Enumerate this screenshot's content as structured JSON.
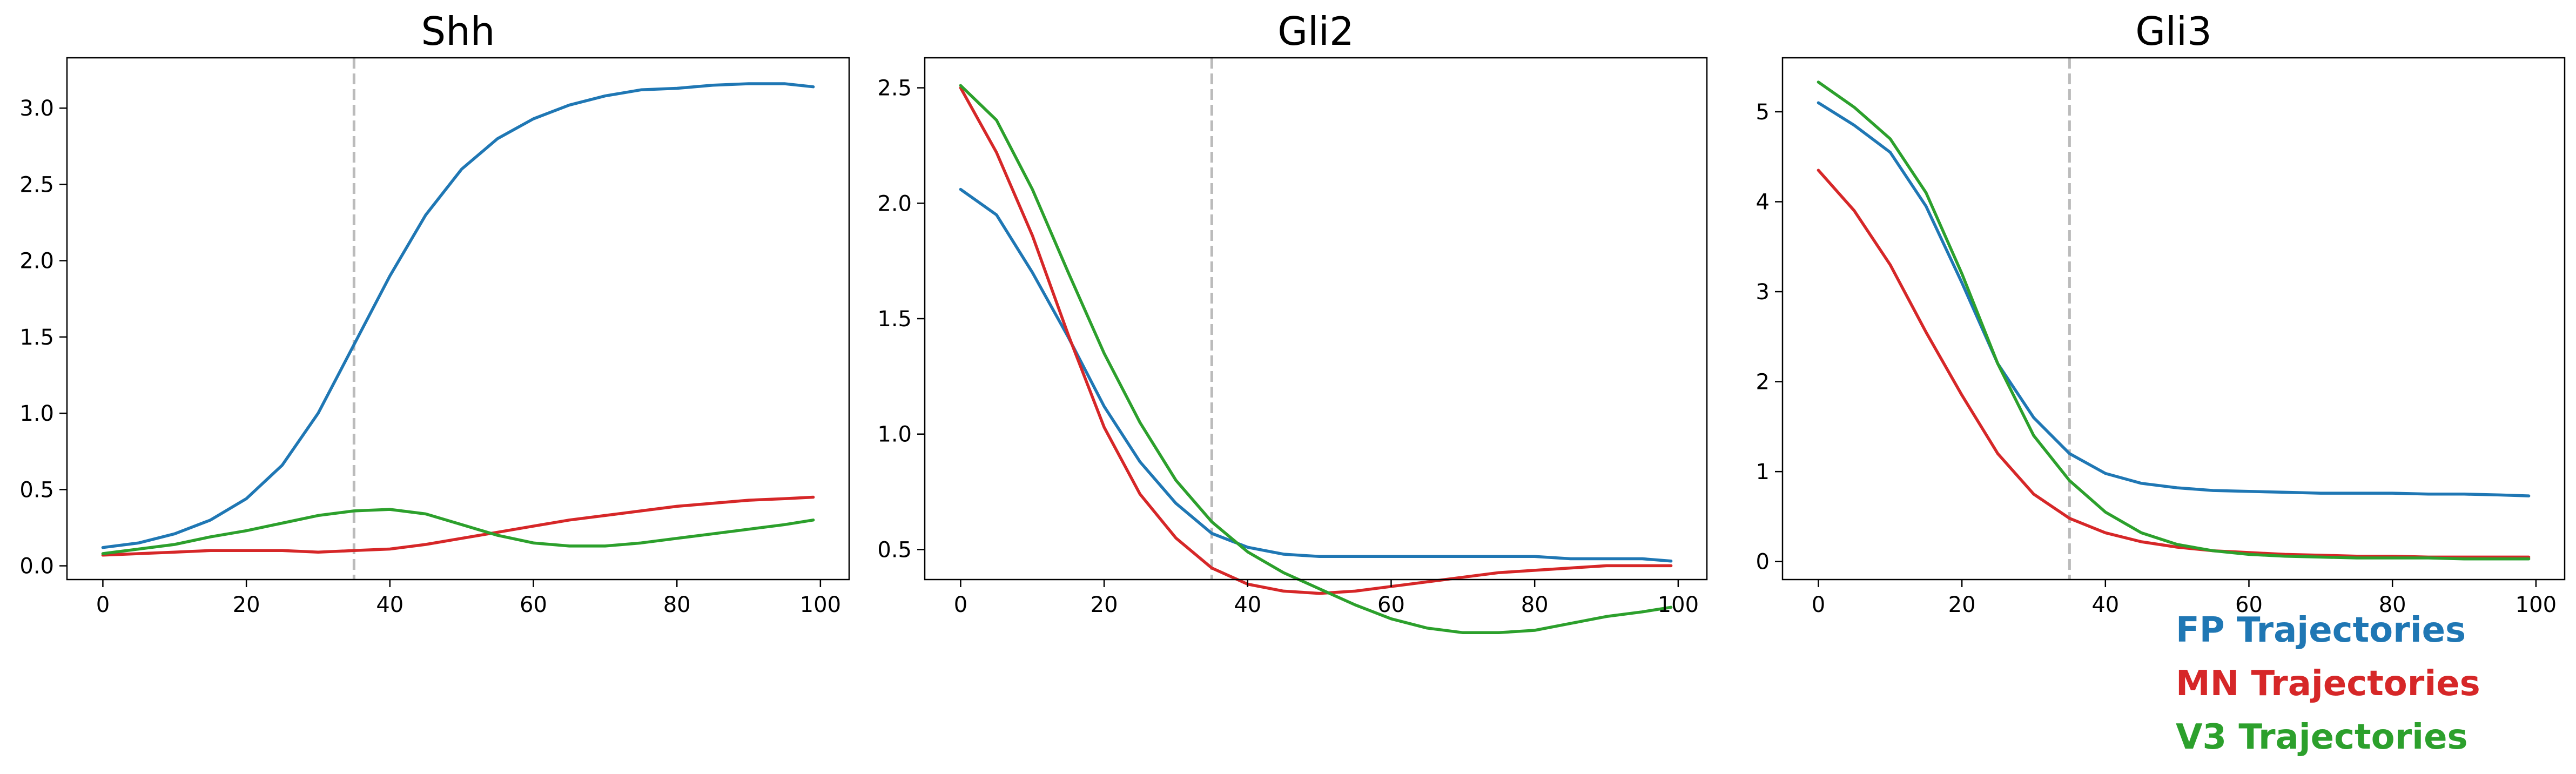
{
  "chart_data": [
    {
      "type": "line",
      "title": "Shh",
      "xlim": [
        -5,
        104
      ],
      "ylim": [
        -0.09,
        3.33
      ],
      "xticks": [
        0,
        20,
        40,
        60,
        80,
        100
      ],
      "yticks": [
        0.0,
        0.5,
        1.0,
        1.5,
        2.0,
        2.5,
        3.0
      ],
      "ytick_labels": [
        "0.0",
        "0.5",
        "1.0",
        "1.5",
        "2.0",
        "2.5",
        "3.0"
      ],
      "vline_x": 35,
      "grid": false,
      "x": [
        0,
        5,
        10,
        15,
        20,
        25,
        30,
        35,
        40,
        45,
        50,
        55,
        60,
        65,
        70,
        75,
        80,
        85,
        90,
        95,
        99
      ],
      "series": [
        {
          "name": "FP Trajectories",
          "color": "#1f77b4",
          "values": [
            0.12,
            0.15,
            0.21,
            0.3,
            0.44,
            0.66,
            1.0,
            1.45,
            1.9,
            2.3,
            2.6,
            2.8,
            2.93,
            3.02,
            3.08,
            3.12,
            3.13,
            3.15,
            3.16,
            3.16,
            3.14
          ]
        },
        {
          "name": "MN Trajectories",
          "color": "#d62728",
          "values": [
            0.07,
            0.08,
            0.09,
            0.1,
            0.1,
            0.1,
            0.09,
            0.1,
            0.11,
            0.14,
            0.18,
            0.22,
            0.26,
            0.3,
            0.33,
            0.36,
            0.39,
            0.41,
            0.43,
            0.44,
            0.45
          ]
        },
        {
          "name": "V3 Trajectories",
          "color": "#2ca02c",
          "values": [
            0.08,
            0.11,
            0.14,
            0.19,
            0.23,
            0.28,
            0.33,
            0.36,
            0.37,
            0.34,
            0.27,
            0.2,
            0.15,
            0.13,
            0.13,
            0.15,
            0.18,
            0.21,
            0.24,
            0.27,
            0.3
          ]
        }
      ]
    },
    {
      "type": "line",
      "title": "Gli2",
      "xlim": [
        -5,
        104
      ],
      "ylim": [
        0.37,
        2.63
      ],
      "xticks": [
        0,
        20,
        40,
        60,
        80,
        100
      ],
      "yticks": [
        0.5,
        1.0,
        1.5,
        2.0,
        2.5
      ],
      "ytick_labels": [
        "0.5",
        "1.0",
        "1.5",
        "2.0",
        "2.5"
      ],
      "vline_x": 35,
      "grid": false,
      "x": [
        0,
        5,
        10,
        15,
        20,
        25,
        30,
        35,
        40,
        45,
        50,
        55,
        60,
        65,
        70,
        75,
        80,
        85,
        90,
        95,
        99
      ],
      "series": [
        {
          "name": "FP Trajectories",
          "color": "#1f77b4",
          "values": [
            2.06,
            1.95,
            1.7,
            1.42,
            1.12,
            0.88,
            0.7,
            0.57,
            0.51,
            0.48,
            0.47,
            0.47,
            0.47,
            0.47,
            0.47,
            0.47,
            0.47,
            0.46,
            0.46,
            0.46,
            0.45
          ]
        },
        {
          "name": "MN Trajectories",
          "color": "#d62728",
          "values": [
            2.5,
            2.22,
            1.86,
            1.43,
            1.03,
            0.74,
            0.55,
            0.42,
            0.35,
            0.32,
            0.31,
            0.32,
            0.34,
            0.36,
            0.38,
            0.4,
            0.41,
            0.42,
            0.43,
            0.43,
            0.43
          ]
        },
        {
          "name": "V3 Trajectories",
          "color": "#2ca02c",
          "values": [
            2.51,
            2.36,
            2.06,
            1.7,
            1.35,
            1.05,
            0.8,
            0.62,
            0.49,
            0.4,
            0.33,
            0.26,
            0.2,
            0.16,
            0.14,
            0.14,
            0.15,
            0.18,
            0.21,
            0.23,
            0.25
          ]
        }
      ]
    },
    {
      "type": "line",
      "title": "Gli3",
      "xlim": [
        -5,
        104
      ],
      "ylim": [
        -0.2,
        5.6
      ],
      "xticks": [
        0,
        20,
        40,
        60,
        80,
        100
      ],
      "yticks": [
        0,
        1,
        2,
        3,
        4,
        5
      ],
      "ytick_labels": [
        "0",
        "1",
        "2",
        "3",
        "4",
        "5"
      ],
      "vline_x": 35,
      "grid": false,
      "x": [
        0,
        5,
        10,
        15,
        20,
        25,
        30,
        35,
        40,
        45,
        50,
        55,
        60,
        65,
        70,
        75,
        80,
        85,
        90,
        95,
        99
      ],
      "series": [
        {
          "name": "FP Trajectories",
          "color": "#1f77b4",
          "values": [
            5.1,
            4.85,
            4.55,
            3.95,
            3.1,
            2.2,
            1.6,
            1.2,
            0.98,
            0.87,
            0.82,
            0.79,
            0.78,
            0.77,
            0.76,
            0.76,
            0.76,
            0.75,
            0.75,
            0.74,
            0.73
          ]
        },
        {
          "name": "MN Trajectories",
          "color": "#d62728",
          "values": [
            4.35,
            3.9,
            3.3,
            2.55,
            1.85,
            1.2,
            0.75,
            0.48,
            0.32,
            0.22,
            0.16,
            0.12,
            0.1,
            0.08,
            0.07,
            0.06,
            0.06,
            0.05,
            0.05,
            0.05,
            0.05
          ]
        },
        {
          "name": "V3 Trajectories",
          "color": "#2ca02c",
          "values": [
            5.33,
            5.05,
            4.7,
            4.1,
            3.2,
            2.2,
            1.4,
            0.9,
            0.55,
            0.32,
            0.19,
            0.12,
            0.08,
            0.06,
            0.05,
            0.04,
            0.04,
            0.04,
            0.03,
            0.03,
            0.03
          ]
        }
      ]
    }
  ],
  "legend": {
    "placement": "below-right",
    "entries": [
      {
        "label": "FP Trajectories",
        "color": "#1f77b4"
      },
      {
        "label": "MN Trajectories",
        "color": "#d62728"
      },
      {
        "label": "V3 Trajectories",
        "color": "#2ca02c"
      }
    ]
  },
  "style": {
    "vline_color": "#bbbbbb",
    "axis_color": "#000000"
  }
}
